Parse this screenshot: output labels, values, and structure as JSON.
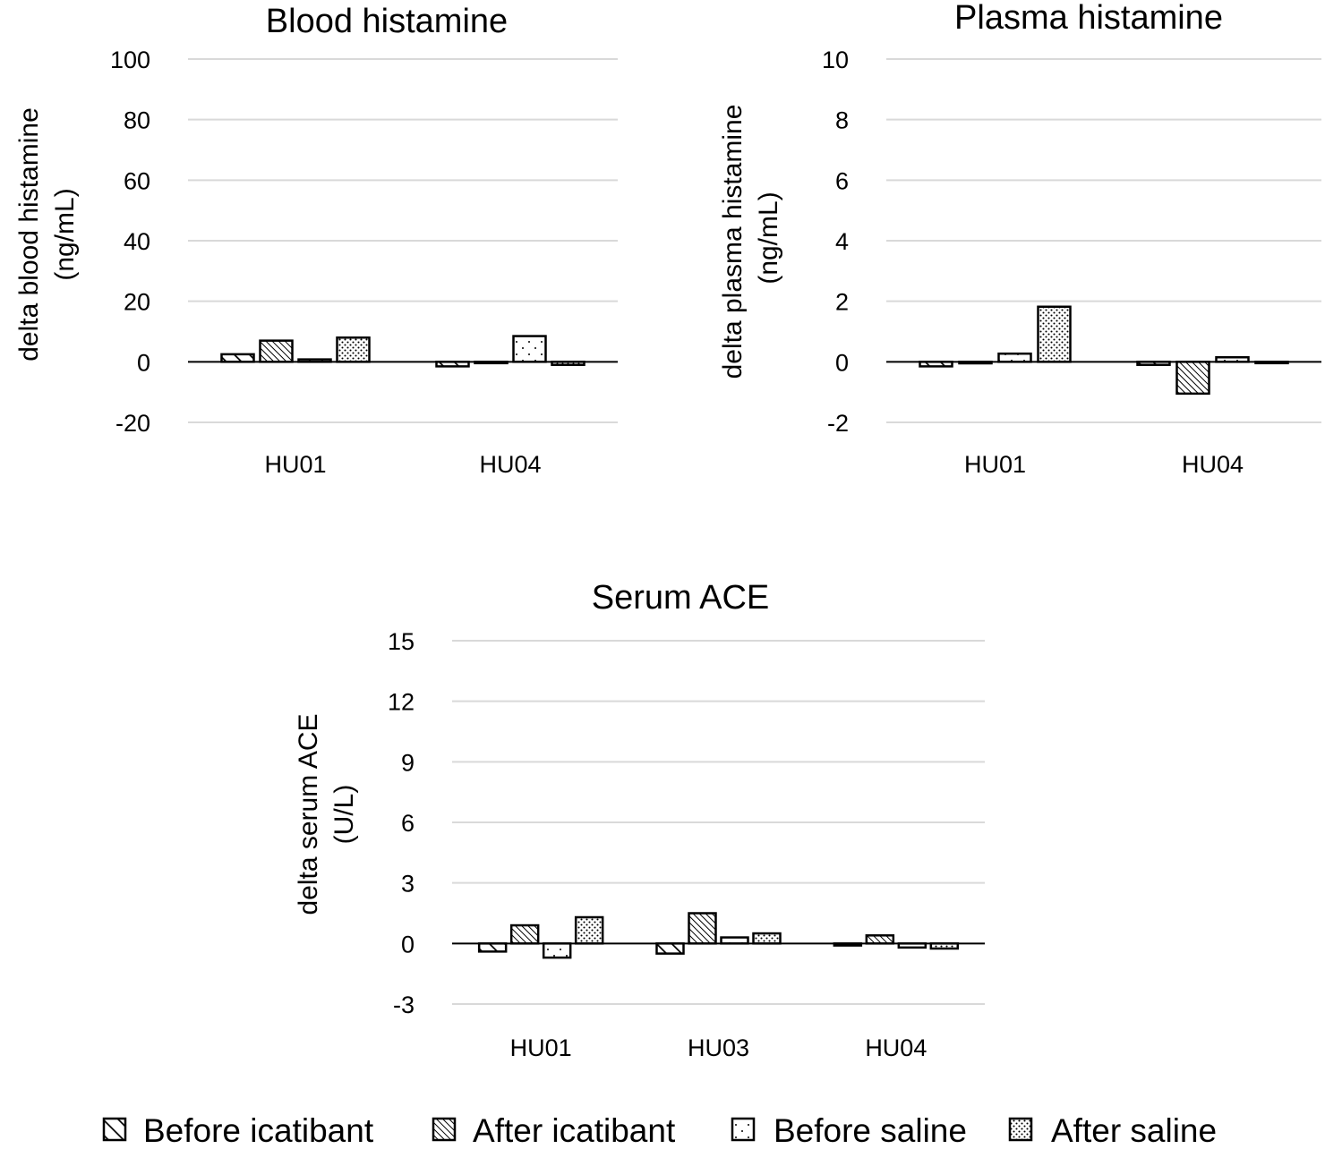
{
  "legend": {
    "items": [
      {
        "label": "Before icatibant",
        "pattern": "sparse-diagonal"
      },
      {
        "label": "After icatibant",
        "pattern": "dense-diagonal"
      },
      {
        "label": "Before saline",
        "pattern": "sparse-dots"
      },
      {
        "label": "After saline",
        "pattern": "dense-dots"
      }
    ],
    "placement": "bottom"
  },
  "chart_data": [
    {
      "type": "bar",
      "title": "Blood histamine",
      "ylabel": [
        "delta blood histamine",
        "(ng/mL)"
      ],
      "xlabel": "",
      "ylim": [
        -20,
        100
      ],
      "yticks": [
        -20,
        0,
        20,
        40,
        60,
        80,
        100
      ],
      "ytick_labels": [
        "-20",
        "0",
        "20",
        "40",
        "60",
        "80",
        "100"
      ],
      "grid": true,
      "categories": [
        "HU01",
        "HU04"
      ],
      "series": [
        {
          "name": "Before icatibant",
          "values": [
            2.5,
            -1.5
          ]
        },
        {
          "name": "After icatibant",
          "values": [
            7,
            -0.3
          ]
        },
        {
          "name": "Before saline",
          "values": [
            0.8,
            8.5
          ]
        },
        {
          "name": "After saline",
          "values": [
            8,
            -1
          ]
        }
      ]
    },
    {
      "type": "bar",
      "title": "Plasma histamine",
      "ylabel": [
        "delta plasma histamine",
        "(ng/mL)"
      ],
      "xlabel": "",
      "ylim": [
        -2,
        10
      ],
      "yticks": [
        -2,
        0,
        2,
        4,
        6,
        8,
        10
      ],
      "ytick_labels": [
        "-2",
        "0",
        "2",
        "4",
        "6",
        "8",
        "10"
      ],
      "grid": true,
      "categories": [
        "HU01",
        "HU04"
      ],
      "series": [
        {
          "name": "Before icatibant",
          "values": [
            -0.15,
            -0.1
          ]
        },
        {
          "name": "After icatibant",
          "values": [
            -0.05,
            -1.05
          ]
        },
        {
          "name": "Before saline",
          "values": [
            0.27,
            0.15
          ]
        },
        {
          "name": "After saline",
          "values": [
            1.82,
            -0.03
          ]
        }
      ]
    },
    {
      "type": "bar",
      "title": "Serum ACE",
      "ylabel": [
        "delta serum ACE",
        "(U/L)"
      ],
      "xlabel": "",
      "ylim": [
        -3,
        15
      ],
      "yticks": [
        -3,
        0,
        3,
        6,
        9,
        12,
        15
      ],
      "ytick_labels": [
        "-3",
        "0",
        "3",
        "6",
        "9",
        "12",
        "15"
      ],
      "grid": true,
      "categories": [
        "HU01",
        "HU03",
        "HU04"
      ],
      "series": [
        {
          "name": "Before icatibant",
          "values": [
            -0.4,
            -0.5,
            -0.1
          ]
        },
        {
          "name": "After icatibant",
          "values": [
            0.9,
            1.5,
            0.4
          ]
        },
        {
          "name": "Before saline",
          "values": [
            -0.7,
            0.3,
            -0.2
          ]
        },
        {
          "name": "After saline",
          "values": [
            1.3,
            0.5,
            -0.25
          ]
        }
      ]
    }
  ]
}
